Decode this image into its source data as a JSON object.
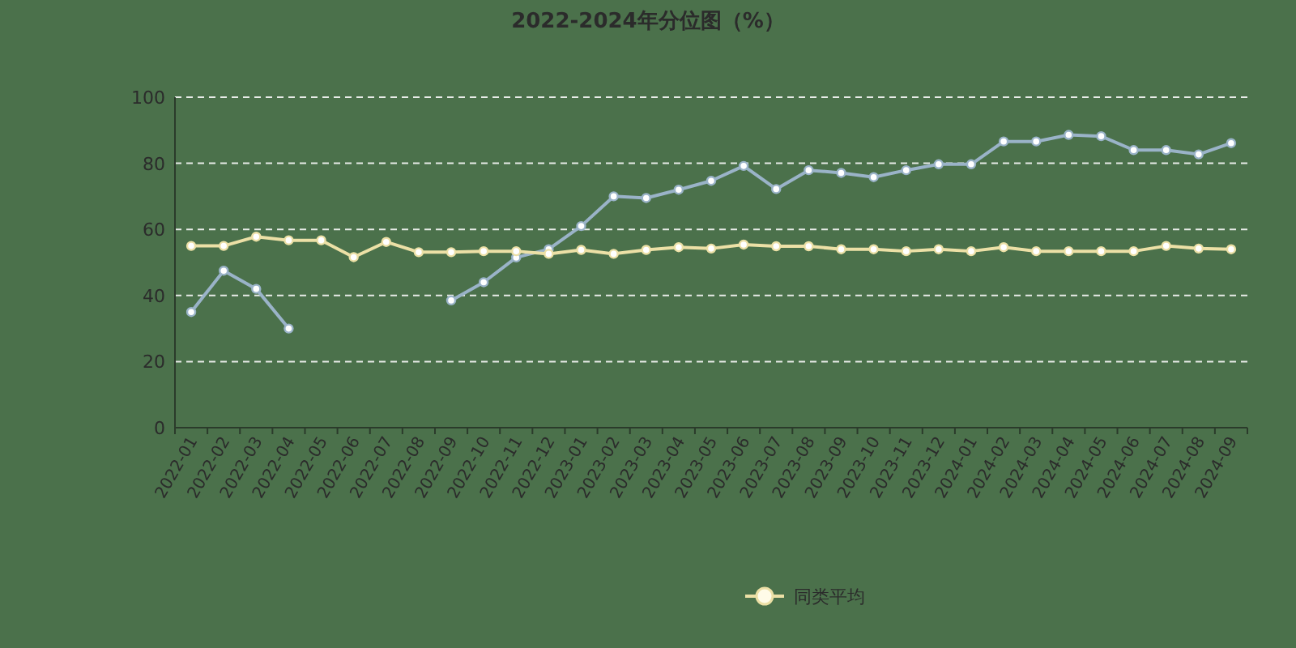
{
  "chart_data": {
    "type": "line",
    "title": "2022-2024年分位图（%）",
    "categories": [
      "2022-01",
      "2022-02",
      "2022-03",
      "2022-04",
      "2022-05",
      "2022-06",
      "2022-07",
      "2022-08",
      "2022-09",
      "2022-10",
      "2022-11",
      "2022-12",
      "2023-01",
      "2023-02",
      "2023-03",
      "2023-04",
      "2023-05",
      "2023-06",
      "2023-07",
      "2023-08",
      "2023-09",
      "2023-10",
      "2023-11",
      "2023-12",
      "2024-01",
      "2024-02",
      "2024-03",
      "2024-04",
      "2024-05",
      "2024-06",
      "2024-07",
      "2024-08",
      "2024-09"
    ],
    "series": [
      {
        "color": "#9ab3c8",
        "values": [
          35,
          47.5,
          42,
          30,
          null,
          null,
          null,
          null,
          38.5,
          44,
          51.5,
          54,
          61,
          70,
          69.5,
          72,
          74.7,
          79.2,
          72.2,
          77.9,
          77.1,
          75.8,
          77.9,
          79.7,
          79.7,
          86.6,
          86.6,
          88.6,
          88.2,
          84,
          84,
          82.7,
          86.1
        ]
      },
      {
        "name": "同类平均",
        "color": "#ece0a6",
        "values": [
          55,
          55,
          57.8,
          56.7,
          56.7,
          51.6,
          56.2,
          53.1,
          53.1,
          53.4,
          53.4,
          52.6,
          53.8,
          52.6,
          53.8,
          54.6,
          54.2,
          55.4,
          54.9,
          54.9,
          54,
          54,
          53.4,
          54,
          53.4,
          54.6,
          53.4,
          53.4,
          53.4,
          53.4,
          55,
          54.2,
          54
        ]
      }
    ],
    "ylim": [
      0,
      100
    ],
    "yticks": [
      0,
      20,
      40,
      60,
      80,
      100
    ],
    "grid": "y",
    "legend": "bottom",
    "marker": "circle",
    "line_style": "solid"
  }
}
